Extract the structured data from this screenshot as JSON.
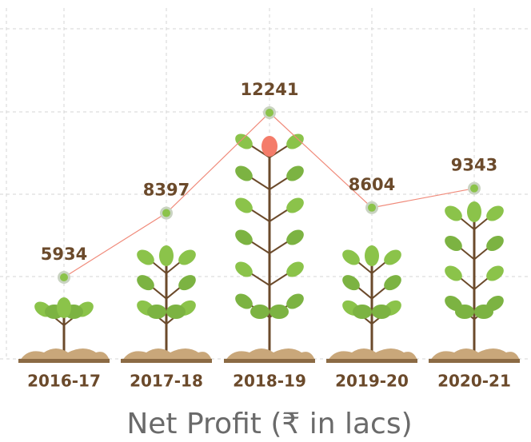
{
  "chart_data": {
    "type": "line",
    "title": "Net Profit (₹ in lacs)",
    "categories": [
      "2016-17",
      "2017-18",
      "2018-19",
      "2019-20",
      "2020-21"
    ],
    "values": [
      5934,
      8397,
      12241,
      8604,
      9343
    ],
    "color": "#f08a7a"
  }
}
